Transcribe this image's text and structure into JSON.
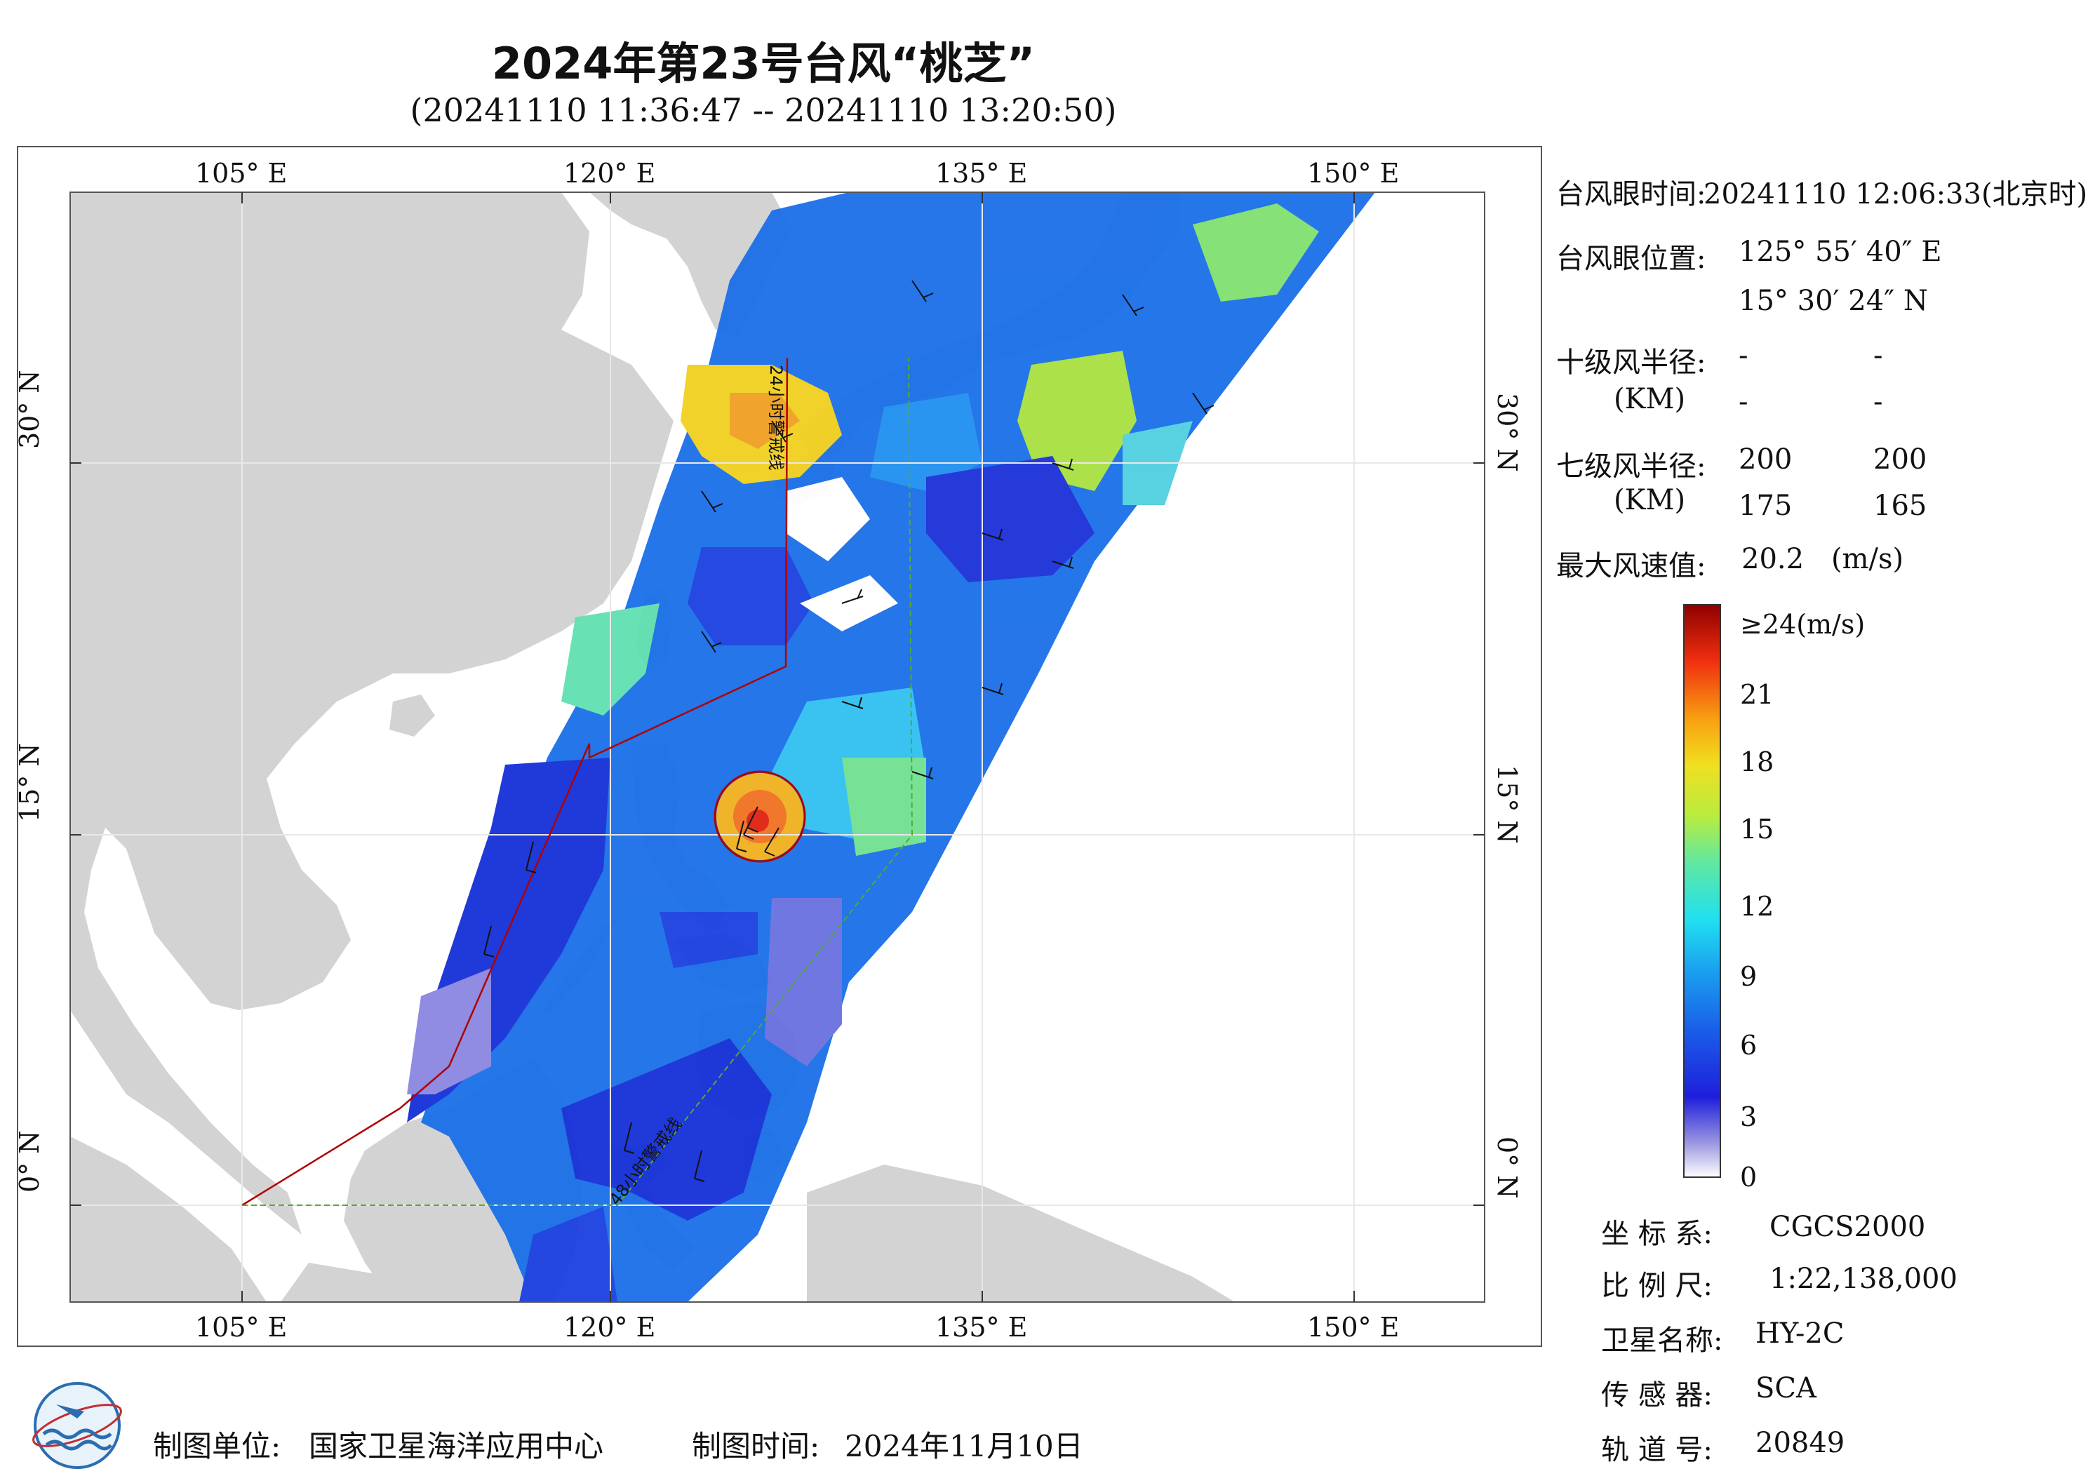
{
  "title": "2024年第23号台风“桃芝”",
  "subtitle": "(20241110 11:36:47 -- 20241110 13:20:50)",
  "map": {
    "lon_labels": [
      "105° E",
      "120° E",
      "135° E",
      "150° E"
    ],
    "lat_labels": [
      "30° N",
      "15° N",
      "0° N"
    ],
    "warning_line_24h": "24小时警戒线",
    "warning_line_48h": "48小时警戒线",
    "colors": {
      "land": "#d3d3d3",
      "sea": "#ffffff",
      "red_line": "#b00000",
      "green_line": "#55aa33"
    }
  },
  "info": {
    "eye_time_label": "台风眼时间:",
    "eye_time_value": "20241110 12:06:33(北京时)",
    "eye_pos_label": "台风眼位置:",
    "eye_lon": "125° 55′ 40″ E",
    "eye_lat": "15° 30′ 24″ N",
    "r10_label": "十级风半径:",
    "r10_unit": "(KM)",
    "r10_values": [
      "-",
      "-",
      "-",
      "-"
    ],
    "r7_label": "七级风半径:",
    "r7_unit": "(KM)",
    "r7_values": [
      "200",
      "200",
      "175",
      "165"
    ],
    "max_wind_label": "最大风速值:",
    "max_wind_value": "20.2",
    "max_wind_unit": "(m/s)"
  },
  "colorbar": {
    "top_label": "≥24(m/s)",
    "ticks": [
      "21",
      "18",
      "15",
      "12",
      "9",
      "6",
      "3",
      "0"
    ]
  },
  "meta": {
    "crs_label": "坐 标 系:",
    "crs_value": "CGCS2000",
    "scale_label": "比 例 尺:",
    "scale_value": "1:22,138,000",
    "satellite_label": "卫星名称:",
    "satellite_value": "HY-2C",
    "sensor_label": "传 感 器:",
    "sensor_value": "SCA",
    "orbit_label": "轨 道 号:",
    "orbit_value": "20849"
  },
  "footer": {
    "producer_label": "制图单位:",
    "producer_value": "国家卫星海洋应用中心",
    "date_label": "制图时间:",
    "date_value": "2024年11月10日"
  }
}
